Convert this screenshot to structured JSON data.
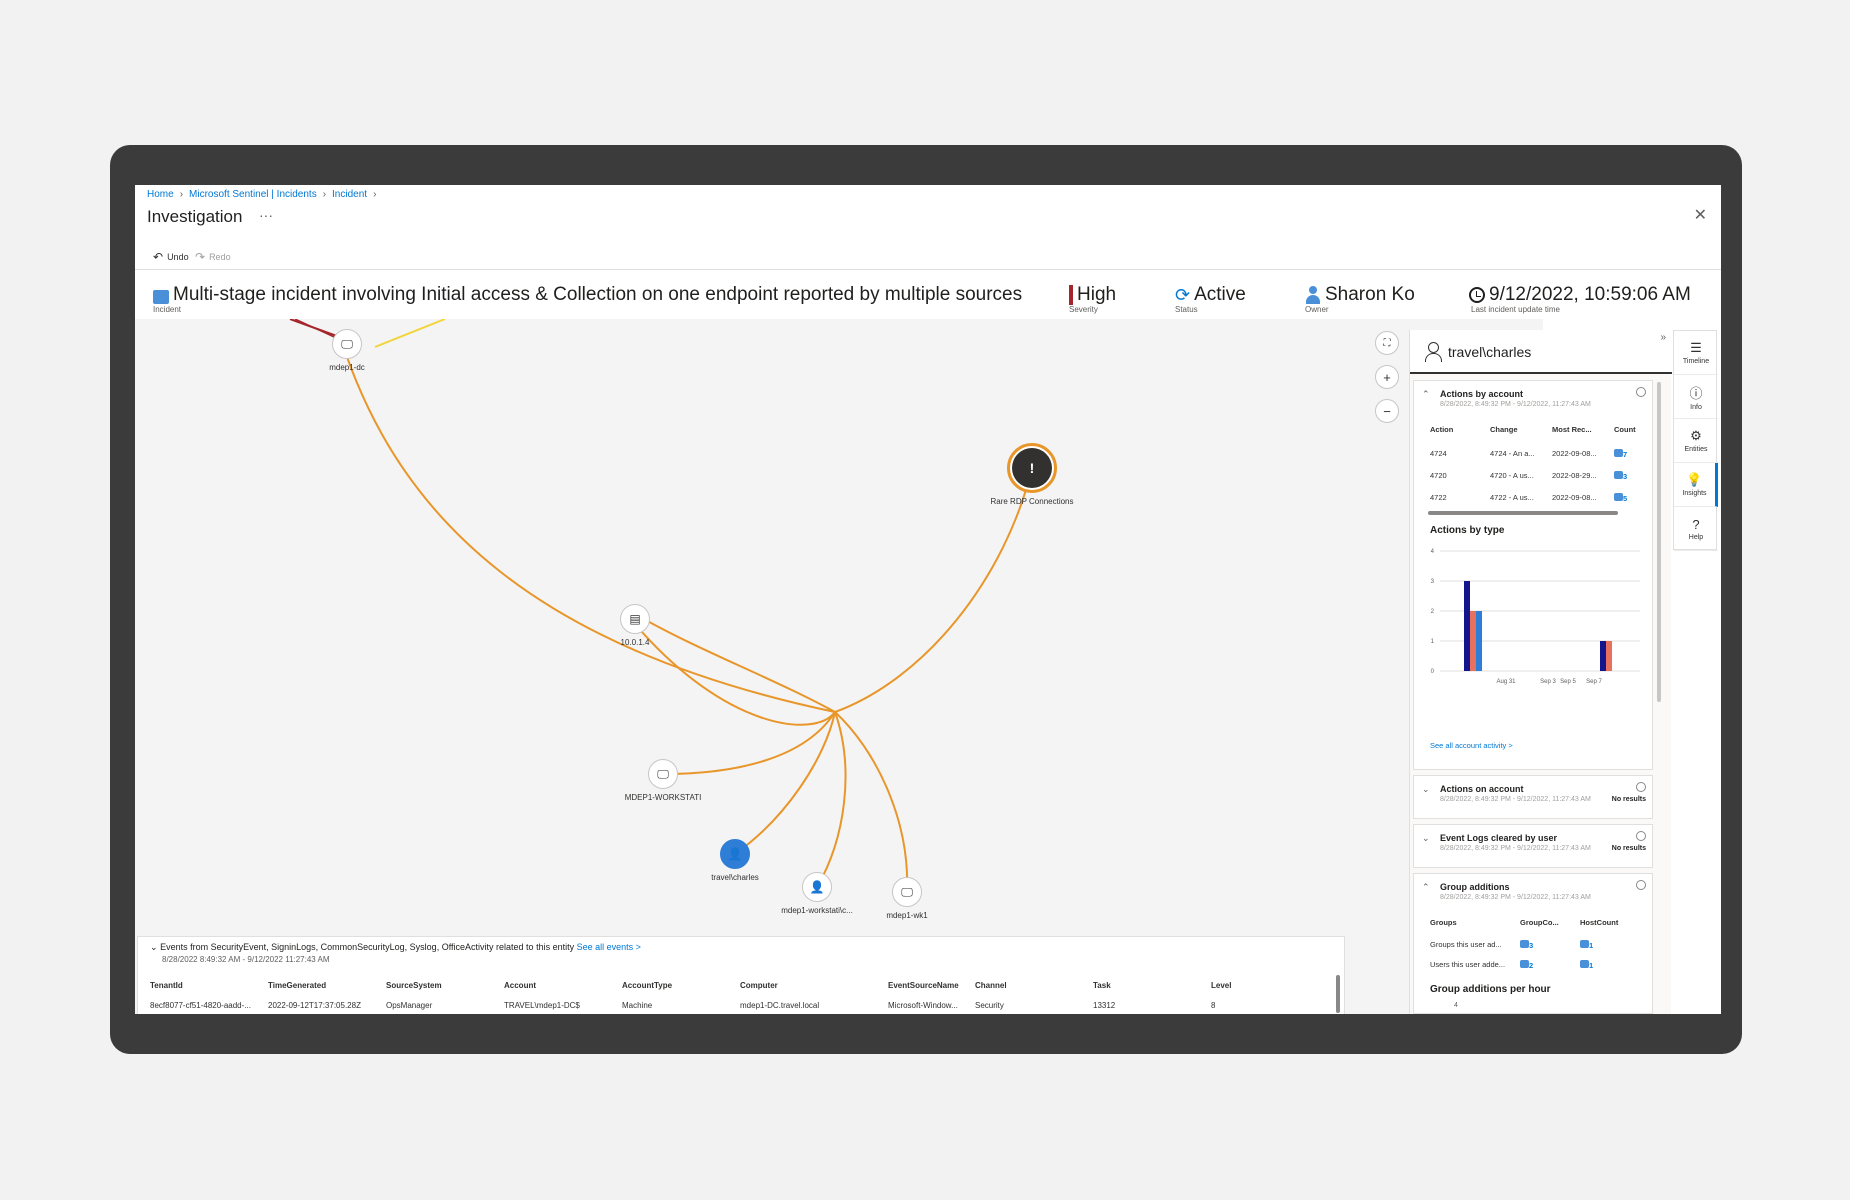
{
  "breadcrumb": [
    "Home",
    "Microsoft Sentinel | Incidents",
    "Incident"
  ],
  "page_title": "Investigation",
  "more_label": "···",
  "commands": {
    "undo": "Undo",
    "redo": "Redo"
  },
  "incident": {
    "title": "Multi-stage incident involving Initial access & Collection on one endpoint reported by multiple sources",
    "title_label": "Incident",
    "severity": "High",
    "severity_label": "Severity",
    "status": "Active",
    "status_label": "Status",
    "owner": "Sharon Ko",
    "owner_label": "Owner",
    "updated": "9/12/2022, 10:59:06 AM",
    "updated_label": "Last incident update time"
  },
  "graph": {
    "nodes": {
      "dc": "mdep1-dc",
      "rdp": "Rare RDP Connections",
      "ip": "10.0.1.4",
      "workstation": "MDEP1-WORKSTATI",
      "charles": "travel\\charles",
      "workstation_acct": "mdep1-workstati\\c...",
      "wk1": "mdep1-wk1"
    },
    "edge_colors": {
      "primary": "#e8962a",
      "alert": "#a4262c",
      "secondary": "#f2d43c"
    }
  },
  "events": {
    "title": "Events from SecurityEvent, SigninLogs, CommonSecurityLog, Syslog, OfficeActivity related to this entity",
    "see_all": "See all events >",
    "range": "8/28/2022 8:49:32 AM - 9/12/2022 11:27:43 AM",
    "columns": [
      "TenantId",
      "TimeGenerated",
      "SourceSystem",
      "Account",
      "AccountType",
      "Computer",
      "EventSourceName",
      "Channel",
      "Task",
      "Level"
    ],
    "rows": [
      [
        "8ecf8077-cf51-4820-aadd-...",
        "2022-09-12T17:37:05.28Z",
        "OpsManager",
        "TRAVEL\\mdep1-DC$",
        "Machine",
        "mdep1-DC.travel.local",
        "Microsoft-Window...",
        "Security",
        "13312",
        "8"
      ]
    ]
  },
  "side": {
    "entity": "travel\\charles",
    "actions_by_account": {
      "title": "Actions by account",
      "range": "8/28/2022, 8:49:32 PM - 9/12/2022, 11:27:43 AM",
      "columns": [
        "Action",
        "Change",
        "Most Rec...",
        "Count"
      ],
      "rows": [
        [
          "4724",
          "4724 - An a...",
          "2022-09-08...",
          "7"
        ],
        [
          "4720",
          "4720 - A us...",
          "2022-08-29...",
          "3"
        ],
        [
          "4722",
          "4722 - A us...",
          "2022-09-08...",
          "5"
        ]
      ]
    },
    "actions_by_type": {
      "title": "Actions by type",
      "see_all": "See all account activity >"
    },
    "actions_on_account": {
      "title": "Actions on account",
      "range": "8/28/2022, 8:49:32 PM - 9/12/2022, 11:27:43 AM",
      "result": "No results"
    },
    "event_logs_cleared": {
      "title": "Event Logs cleared by user",
      "range": "8/28/2022, 8:49:32 PM - 9/12/2022, 11:27:43 AM",
      "result": "No results"
    },
    "group_additions": {
      "title": "Group additions",
      "range": "8/28/2022, 8:49:32 PM - 9/12/2022, 11:27:43 AM",
      "columns": [
        "Groups",
        "GroupCo...",
        "HostCount"
      ],
      "rows": [
        [
          "Groups this user ad...",
          "3",
          "1"
        ],
        [
          "Users this user adde...",
          "2",
          "1"
        ]
      ]
    },
    "group_additions_per_hour": {
      "title": "Group additions per hour",
      "first_tick": "4"
    }
  },
  "chart_data": {
    "type": "bar",
    "title": "Actions by type",
    "y_ticks": [
      0,
      1,
      2,
      3,
      4
    ],
    "x_ticks": [
      "Aug 31",
      "Sep 3",
      "Sep 5",
      "Sep 7"
    ],
    "ylim": [
      0,
      4
    ],
    "colors": [
      "#14148c",
      "#e8705f",
      "#2e7dd6"
    ],
    "groups": [
      {
        "values": [
          3,
          2,
          2
        ]
      },
      {
        "values": [
          1,
          1
        ]
      }
    ]
  },
  "rail": [
    "Timeline",
    "Info",
    "Entities",
    "Insights",
    "Help"
  ]
}
